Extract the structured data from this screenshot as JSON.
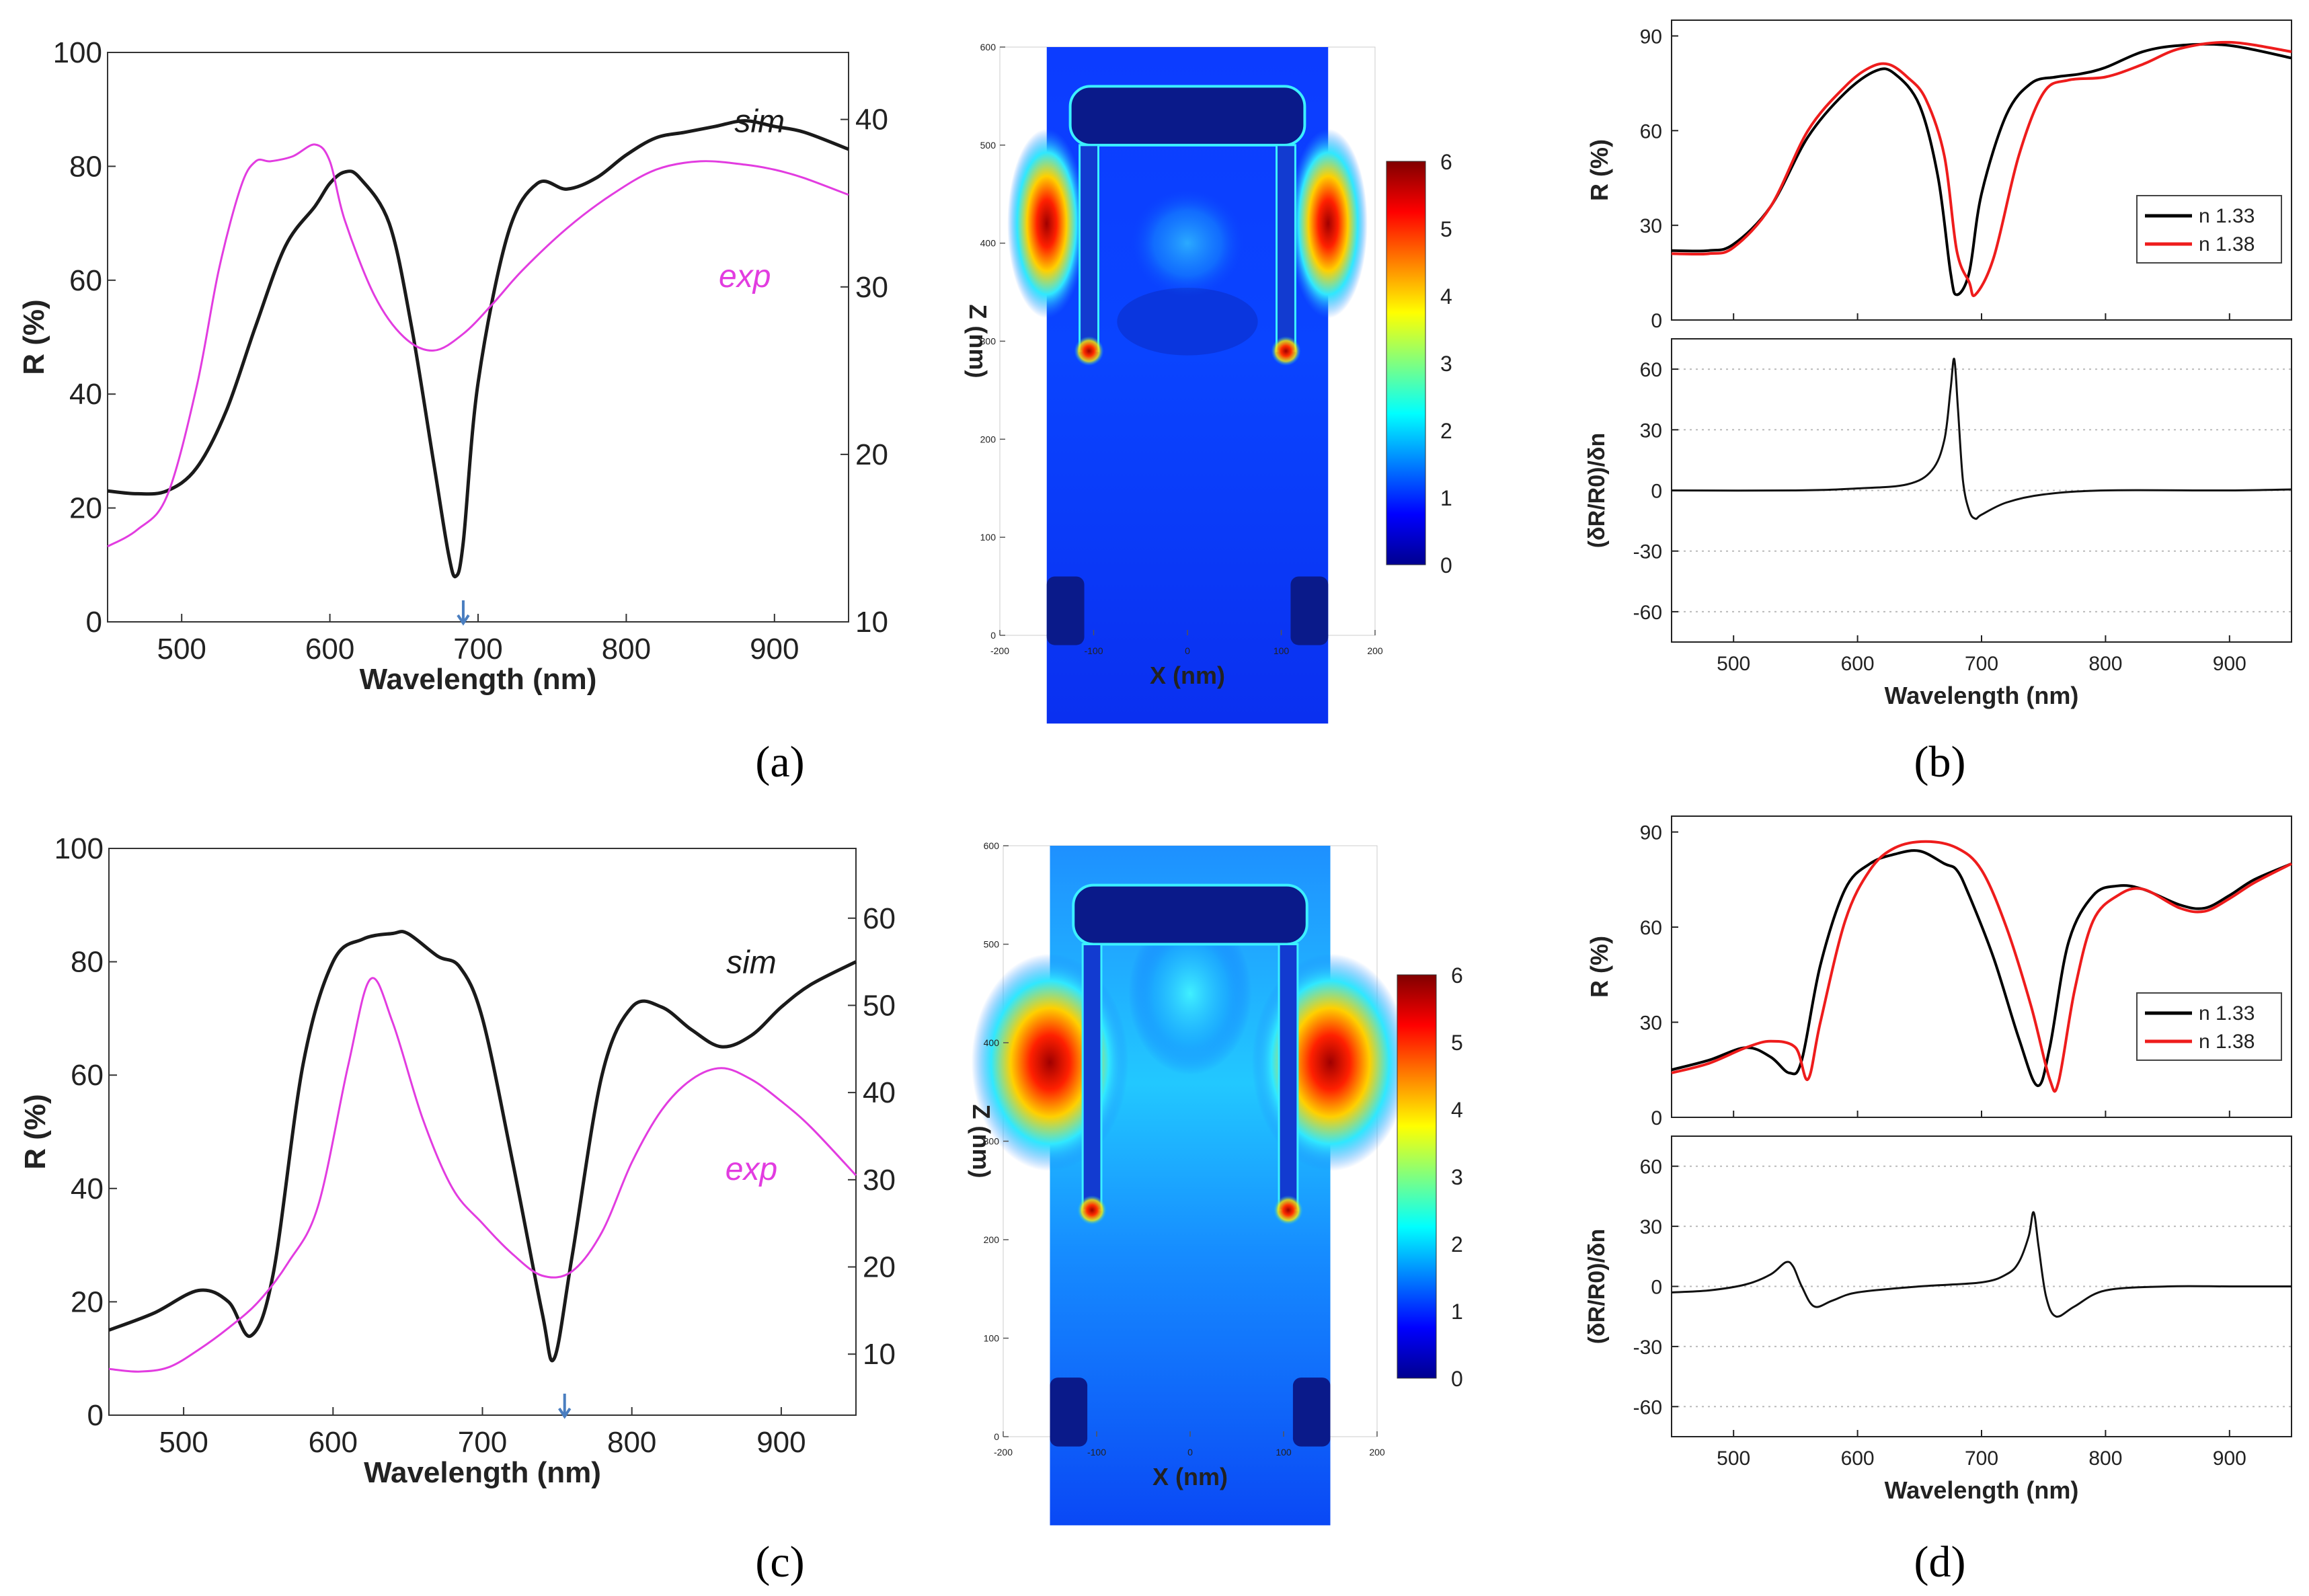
{
  "figure": {
    "panel_labels": [
      "(a)",
      "(b)",
      "(c)",
      "(d)"
    ],
    "colors": {
      "sim": "#1a1a1a",
      "exp": "#e23ce0",
      "n133": "#000000",
      "n138": "#ee1c1c",
      "arrow": "#4a7ec0",
      "grid": "#bbbbbb"
    },
    "colormap_name": "jet",
    "field_map_shape_a": "short-fin",
    "field_map_shape_c": "wide-lobe"
  },
  "chart_data": [
    {
      "id": "a-spectrum",
      "type": "line",
      "xlabel": "Wavelength (nm)",
      "ylabel": "R (%)",
      "xlim": [
        450,
        950
      ],
      "ylim": [
        0,
        100
      ],
      "y2lim": [
        10,
        44
      ],
      "xticks": [
        500,
        600,
        700,
        800,
        900
      ],
      "yticks": [
        0,
        20,
        40,
        60,
        80,
        100
      ],
      "y2ticks": [
        10,
        20,
        30,
        40
      ],
      "arrow_x": 690,
      "series": [
        {
          "name": "sim",
          "axis": "left",
          "label_at": [
            890,
            86
          ],
          "x": [
            450,
            470,
            490,
            510,
            530,
            550,
            570,
            590,
            600,
            610,
            620,
            640,
            655,
            670,
            680,
            685,
            690,
            700,
            720,
            740,
            760,
            780,
            800,
            820,
            840,
            860,
            880,
            900,
            920,
            950
          ],
          "y": [
            23,
            22.5,
            23,
            27,
            37,
            52,
            66,
            73,
            77,
            79,
            78,
            70,
            52,
            28,
            12,
            8,
            14,
            42,
            68,
            77,
            76,
            78,
            82,
            85,
            86,
            87,
            88,
            87,
            86,
            83
          ]
        },
        {
          "name": "exp",
          "axis": "right",
          "label_at": [
            880,
            30
          ],
          "x": [
            450,
            470,
            490,
            510,
            525,
            540,
            550,
            560,
            575,
            590,
            600,
            610,
            630,
            650,
            670,
            690,
            710,
            730,
            760,
            790,
            820,
            850,
            880,
            900,
            920,
            950
          ],
          "y": [
            14.5,
            15.5,
            17.5,
            24,
            31,
            36,
            37.5,
            37.5,
            37.8,
            38.5,
            37.5,
            34,
            29.5,
            27,
            26.2,
            27.2,
            29,
            31,
            33.5,
            35.5,
            37,
            37.5,
            37.3,
            37,
            36.5,
            35.5
          ]
        }
      ]
    },
    {
      "id": "a-field",
      "type": "heatmap",
      "xlabel": "X (nm)",
      "ylabel": "Z (nm)",
      "xticks": [
        -200,
        -100,
        0,
        100,
        200
      ],
      "yticks": [
        0,
        100,
        200,
        300,
        400,
        500,
        600
      ],
      "colorbar": {
        "min": 0,
        "max": 6,
        "ticks": [
          0,
          1,
          2,
          3,
          4,
          5,
          6
        ]
      }
    },
    {
      "id": "b-reflectance",
      "type": "line",
      "ylabel": "R (%)",
      "xlim": [
        450,
        950
      ],
      "ylim": [
        0,
        95
      ],
      "yticks": [
        0,
        30,
        60,
        90
      ],
      "legend": [
        "n 1.33",
        "n 1.38"
      ],
      "series": [
        {
          "name": "n 1.33",
          "x": [
            450,
            480,
            500,
            530,
            560,
            590,
            615,
            630,
            650,
            665,
            675,
            680,
            690,
            700,
            720,
            740,
            760,
            780,
            800,
            830,
            860,
            900,
            950
          ],
          "y": [
            22,
            22,
            24,
            36,
            58,
            72,
            79,
            78,
            68,
            45,
            15,
            8,
            15,
            40,
            65,
            75,
            77,
            78,
            80,
            85,
            87,
            87,
            83
          ]
        },
        {
          "name": "n 1.38",
          "x": [
            450,
            480,
            500,
            530,
            560,
            590,
            610,
            625,
            640,
            655,
            670,
            680,
            690,
            695,
            710,
            730,
            750,
            770,
            800,
            830,
            860,
            900,
            950
          ],
          "y": [
            21,
            21,
            23,
            36,
            60,
            74,
            80,
            81,
            77,
            70,
            52,
            22,
            12,
            8,
            20,
            52,
            72,
            76,
            77,
            81,
            86,
            88,
            85
          ]
        }
      ]
    },
    {
      "id": "b-derivative",
      "type": "line",
      "xlabel": "Wavelength (nm)",
      "ylabel": "(δR/R0)/δn",
      "xlim": [
        450,
        950
      ],
      "ylim": [
        -75,
        75
      ],
      "xticks": [
        500,
        600,
        700,
        800,
        900
      ],
      "yticks": [
        -60,
        -30,
        0,
        30,
        60
      ],
      "series": [
        {
          "name": "derivative",
          "x": [
            450,
            550,
            600,
            640,
            660,
            670,
            675,
            678,
            681,
            685,
            690,
            695,
            700,
            720,
            750,
            800,
            900,
            950
          ],
          "y": [
            0,
            0,
            1,
            3,
            10,
            25,
            50,
            65,
            40,
            5,
            -10,
            -14,
            -12,
            -6,
            -2,
            0,
            0,
            0.5
          ]
        }
      ]
    },
    {
      "id": "c-spectrum",
      "type": "line",
      "xlabel": "Wavelength (nm)",
      "ylabel": "R (%)",
      "xlim": [
        450,
        950
      ],
      "ylim": [
        0,
        100
      ],
      "y2lim": [
        3,
        68
      ],
      "xticks": [
        500,
        600,
        700,
        800,
        900
      ],
      "yticks": [
        0,
        20,
        40,
        60,
        80,
        100
      ],
      "y2ticks": [
        10,
        20,
        30,
        40,
        50,
        60
      ],
      "arrow_x": 755,
      "series": [
        {
          "name": "sim",
          "axis": "left",
          "label_at": [
            880,
            78
          ],
          "x": [
            450,
            480,
            510,
            530,
            545,
            560,
            580,
            600,
            620,
            640,
            650,
            670,
            685,
            700,
            720,
            740,
            748,
            760,
            780,
            800,
            820,
            840,
            860,
            880,
            900,
            920,
            950
          ],
          "y": [
            15,
            18,
            22,
            20,
            14,
            25,
            62,
            80,
            84,
            85,
            85,
            81,
            79,
            70,
            45,
            18,
            10,
            28,
            60,
            72,
            72,
            68,
            65,
            67,
            72,
            76,
            80
          ]
        },
        {
          "name": "exp",
          "axis": "right",
          "label_at": [
            880,
            30
          ],
          "x": [
            450,
            470,
            490,
            510,
            530,
            550,
            570,
            590,
            610,
            625,
            640,
            660,
            680,
            700,
            720,
            740,
            760,
            780,
            800,
            820,
            840,
            860,
            880,
            900,
            920,
            950
          ],
          "y": [
            8.3,
            8,
            8.5,
            10.5,
            13,
            16,
            20.5,
            27,
            43,
            53,
            48,
            37,
            29,
            25,
            21.5,
            19,
            19.5,
            24,
            32,
            38,
            41.5,
            42.8,
            41.5,
            39,
            36,
            30.5
          ]
        }
      ]
    },
    {
      "id": "c-field",
      "type": "heatmap",
      "xlabel": "X (nm)",
      "ylabel": "Z (nm)",
      "xticks": [
        -200,
        -100,
        0,
        100,
        200
      ],
      "yticks": [
        0,
        100,
        200,
        300,
        400,
        500,
        600
      ],
      "colorbar": {
        "min": 0,
        "max": 6,
        "ticks": [
          0,
          1,
          2,
          3,
          4,
          5,
          6
        ]
      }
    },
    {
      "id": "d-reflectance",
      "type": "line",
      "ylabel": "R (%)",
      "xlim": [
        450,
        950
      ],
      "ylim": [
        0,
        95
      ],
      "yticks": [
        0,
        30,
        60,
        90
      ],
      "legend": [
        "n 1.33",
        "n 1.38"
      ],
      "series": [
        {
          "name": "n 1.33",
          "x": [
            450,
            480,
            510,
            530,
            545,
            555,
            570,
            590,
            610,
            630,
            650,
            670,
            680,
            690,
            710,
            730,
            745,
            755,
            770,
            790,
            810,
            830,
            860,
            880,
            900,
            920,
            950
          ],
          "y": [
            15,
            18,
            22,
            19,
            14,
            18,
            48,
            72,
            80,
            83,
            84,
            80,
            78,
            70,
            50,
            25,
            10,
            22,
            55,
            70,
            73,
            72,
            67,
            66,
            70,
            75,
            80
          ]
        },
        {
          "name": "n 1.38",
          "x": [
            450,
            480,
            510,
            530,
            550,
            560,
            570,
            590,
            610,
            630,
            655,
            680,
            700,
            720,
            740,
            755,
            762,
            775,
            790,
            810,
            830,
            860,
            880,
            900,
            920,
            950
          ],
          "y": [
            14,
            17,
            22,
            24,
            22,
            12,
            30,
            62,
            78,
            85,
            87,
            85,
            78,
            60,
            35,
            12,
            11,
            40,
            62,
            70,
            72,
            66,
            65,
            69,
            74,
            80
          ]
        }
      ]
    },
    {
      "id": "d-derivative",
      "type": "line",
      "xlabel": "Wavelength (nm)",
      "ylabel": "(δR/R0)/δn",
      "xlim": [
        450,
        950
      ],
      "ylim": [
        -75,
        75
      ],
      "xticks": [
        500,
        600,
        700,
        800,
        900
      ],
      "yticks": [
        -60,
        -30,
        0,
        30,
        60
      ],
      "series": [
        {
          "name": "derivative",
          "x": [
            450,
            480,
            510,
            530,
            542,
            548,
            555,
            565,
            580,
            600,
            650,
            700,
            720,
            730,
            738,
            742,
            746,
            752,
            760,
            775,
            800,
            850,
            900,
            950
          ],
          "y": [
            -3,
            -2,
            1,
            6,
            12,
            10,
            0,
            -10,
            -7,
            -3,
            0,
            2,
            6,
            12,
            25,
            37,
            20,
            -5,
            -15,
            -10,
            -2,
            0,
            0,
            0
          ]
        }
      ]
    }
  ]
}
